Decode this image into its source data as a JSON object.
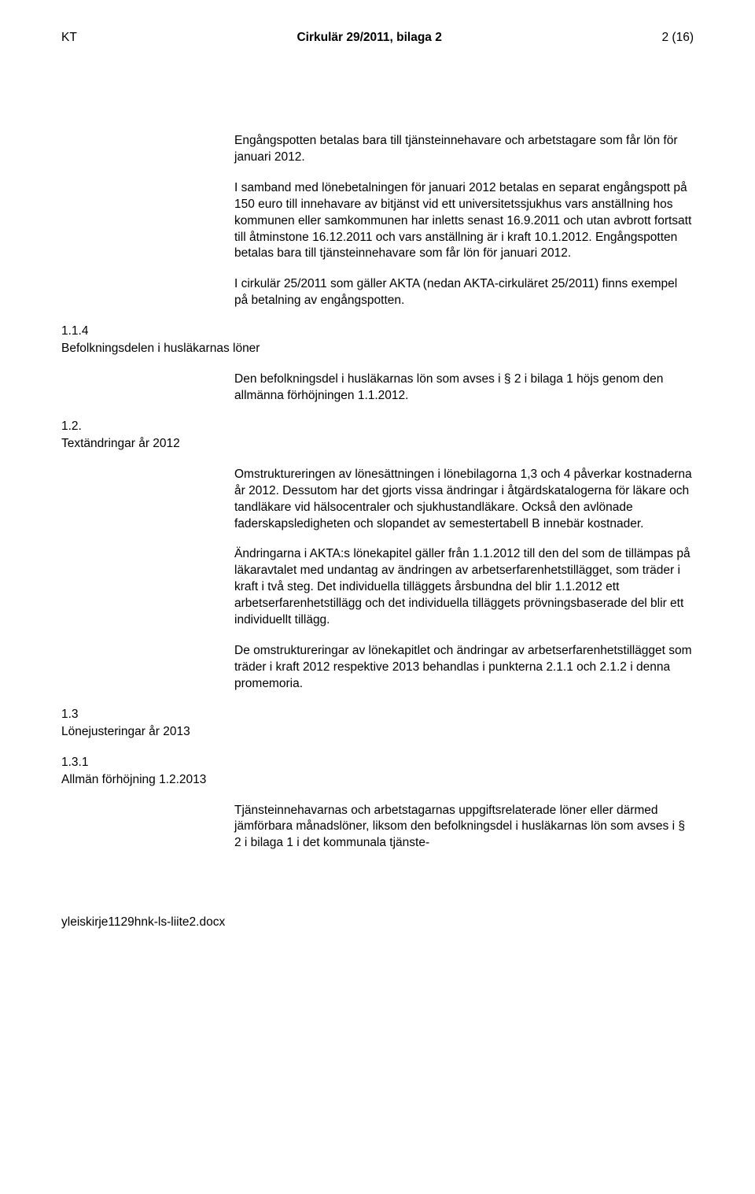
{
  "header": {
    "left": "KT",
    "center": "Cirkulär 29/2011, bilaga 2",
    "right": "2 (16)"
  },
  "blocks": {
    "p1": "Engångspotten betalas bara till tjänsteinnehavare och arbetstagare som får lön för januari 2012.",
    "p2": "I samband med lönebetalningen för januari 2012 betalas en separat engångspott på 150 euro till innehavare av bitjänst vid ett universitetssjukhus vars anställning hos kommunen eller samkommunen har inletts senast 16.9.2011 och utan avbrott fortsatt till åtminstone 16.12.2011 och vars anställning är i kraft 10.1.2012. Engångspotten betalas bara till tjänsteinnehavare som får lön för januari 2012.",
    "p3": "I cirkulär 25/2011 som gäller AKTA (nedan AKTA-cirkuläret 25/2011) finns exempel på betalning av engångspotten."
  },
  "s114": {
    "num": "1.1.4",
    "title": "Befolkningsdelen i husläkarnas löner",
    "p1": "Den befolkningsdel i husläkarnas lön som avses i § 2 i bilaga 1 höjs genom den allmänna förhöjningen 1.1.2012."
  },
  "s12": {
    "num": "1.2.",
    "title": "Textändringar år 2012",
    "p1": "Omstruktureringen av lönesättningen i lönebilagorna 1,3 och 4 påverkar kostnaderna år 2012. Dessutom har det gjorts vissa ändringar i åtgärdskatalogerna för läkare och tandläkare vid hälsocentraler och sjukhustandläkare. Också den avlönade faderskapsledigheten och slopandet av semestertabell B innebär kostnader.",
    "p2": "Ändringarna i AKTA:s lönekapitel gäller från 1.1.2012 till den del som de tillämpas på läkaravtalet med undantag av ändringen av arbetserfarenhetstillägget, som träder i kraft i två steg. Det individuella tilläggets årsbundna del blir 1.1.2012 ett arbetserfarenhetstillägg och det individuella tilläggets prövningsbaserade del blir ett individuellt tillägg.",
    "p3": "De omstruktureringar av lönekapitlet och ändringar av arbetserfarenhetstillägget som träder i kraft 2012 respektive 2013 behandlas i punkterna 2.1.1 och 2.1.2 i denna promemoria."
  },
  "s13": {
    "num": "1.3",
    "title": "Lönejusteringar år 2013"
  },
  "s131": {
    "num": "1.3.1",
    "title": "Allmän förhöjning 1.2.2013",
    "p1": "Tjänsteinnehavarnas och arbetstagarnas uppgiftsrelaterade löner eller därmed jämförbara månadslöner, liksom den befolkningsdel i husläkarnas lön som avses i § 2 i bilaga 1 i det kommunala tjänste-"
  },
  "footer": "yleiskirje1129hnk-ls-liite2.docx"
}
